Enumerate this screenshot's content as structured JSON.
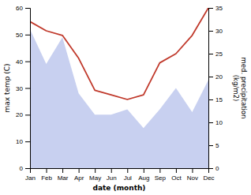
{
  "chart_data": {
    "type": "area",
    "categories": [
      "Jan",
      "Feb",
      "Mar",
      "Apr",
      "May",
      "Jun",
      "Jul",
      "Aug",
      "Sep",
      "Oct",
      "Nov",
      "Dec"
    ],
    "series": [
      {
        "type": "area",
        "color": "#c8d0f0",
        "values": [
          52,
          39,
          49,
          28,
          20,
          20,
          22,
          15,
          22,
          30,
          21,
          33
        ]
      },
      {
        "type": "line",
        "color": "#c0392b",
        "axis": "y2",
        "values": [
          32,
          30,
          29,
          24,
          17,
          16,
          15,
          16,
          23,
          25,
          29,
          35
        ]
      }
    ],
    "xlabel": "date (month)",
    "ylabel": "max temp (C)",
    "y2label": "med. precipitation\n(kg/m2)",
    "ylim": [
      0,
      60
    ],
    "yticks": [
      0,
      10,
      20,
      30,
      40,
      50,
      60
    ],
    "y2lim": [
      0,
      35
    ],
    "y2ticks": [
      0,
      5,
      10,
      15,
      20,
      25,
      30,
      35
    ],
    "grid": false
  }
}
